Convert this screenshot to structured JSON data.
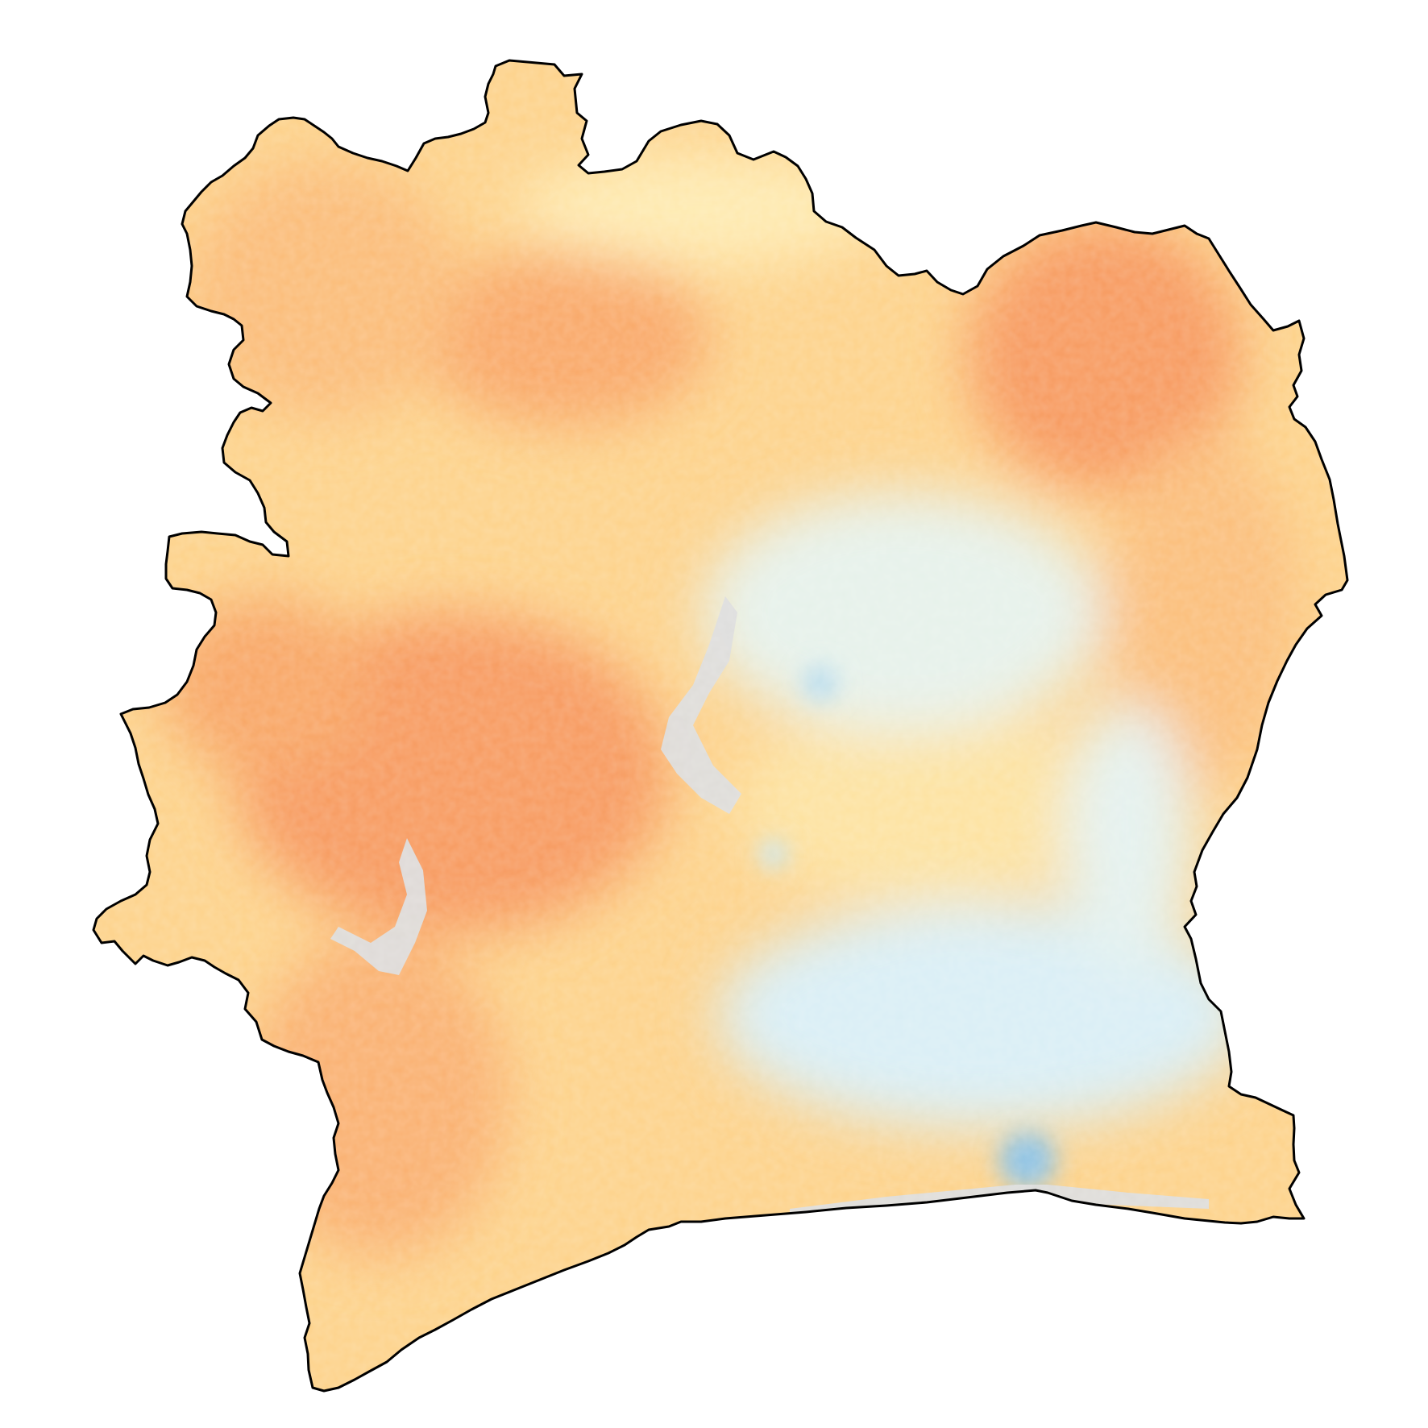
{
  "map": {
    "type": "choropleth-raster",
    "title": "",
    "legend": "none",
    "outline_color": "#000000",
    "no_data_color": "#dcdcdc",
    "palette": [
      "#2c7bb6",
      "#abd9e9",
      "#e0f3f8",
      "#ffffbf",
      "#fee090",
      "#fdae61",
      "#f46d43"
    ],
    "regions": [
      {
        "name": "north-central-hotspot",
        "level": 0.85
      },
      {
        "name": "north-east-hotspot",
        "level": 0.9
      },
      {
        "name": "west-central-hotspot",
        "level": 0.9
      },
      {
        "name": "central-cool-zone",
        "level": 0.35
      },
      {
        "name": "south-east-cool-zone",
        "level": 0.25
      },
      {
        "name": "abidjan-cold-spot",
        "level": 0.05
      }
    ]
  }
}
